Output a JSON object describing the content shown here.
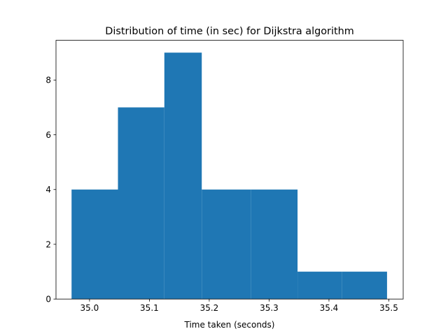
{
  "chart_data": {
    "type": "histogram",
    "title": "Distribution of time (in sec) for Dijkstra algorithm",
    "xlabel": "Time taken (seconds)",
    "ylabel": "",
    "bin_edges": [
      34.97,
      35.0475,
      35.125,
      35.1875,
      35.27,
      35.3475,
      35.422,
      35.497
    ],
    "counts": [
      4,
      7,
      9,
      4,
      4,
      1,
      1
    ],
    "xlim": [
      34.944,
      35.524
    ],
    "ylim": [
      0,
      9.45
    ],
    "xticks": [
      35.0,
      35.1,
      35.2,
      35.3,
      35.4,
      35.5
    ],
    "xtick_labels": [
      "35.0",
      "35.1",
      "35.2",
      "35.3",
      "35.4",
      "35.5"
    ],
    "yticks": [
      0,
      2,
      4,
      6,
      8
    ],
    "ytick_labels": [
      "0",
      "2",
      "4",
      "6",
      "8"
    ],
    "bar_color": "#1f77b4",
    "grid": false,
    "legend": "none"
  }
}
